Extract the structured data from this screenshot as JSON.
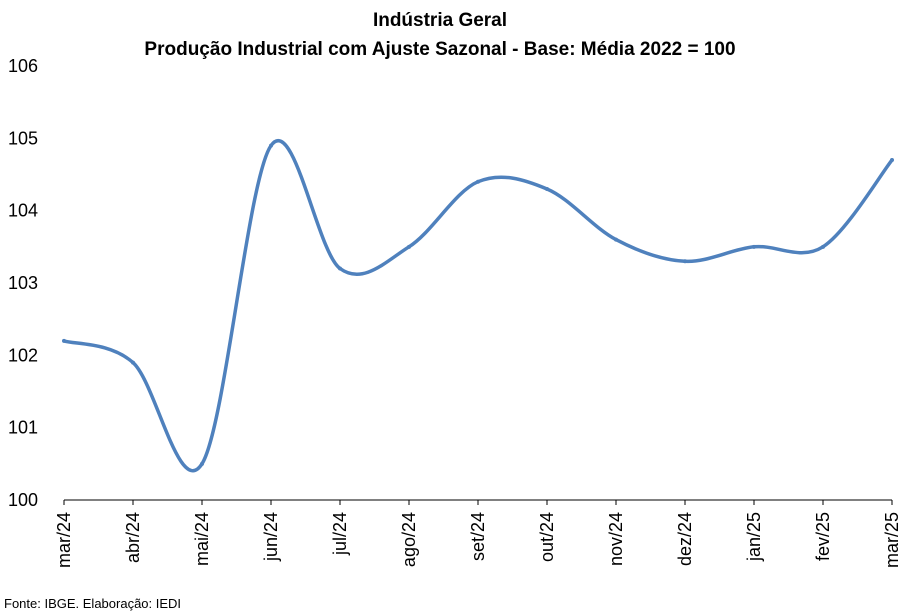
{
  "chart_data": {
    "type": "line",
    "title": "Indústria Geral",
    "subtitle": "Produção Industrial com Ajuste Sazonal - Base: Média 2022 = 100",
    "categories": [
      "mar/24",
      "abr/24",
      "mai/24",
      "jun/24",
      "jul/24",
      "ago/24",
      "set/24",
      "out/24",
      "nov/24",
      "dez/24",
      "jan/25",
      "fev/25",
      "mar/25"
    ],
    "series": [
      {
        "values": [
          102.2,
          101.9,
          100.5,
          104.9,
          103.2,
          103.5,
          104.4,
          104.3,
          103.6,
          103.3,
          103.5,
          103.5,
          104.7
        ]
      }
    ],
    "ylim": [
      100,
      106
    ],
    "yticks": [
      "100",
      "101",
      "102",
      "103",
      "104",
      "105",
      "106"
    ],
    "grid": false,
    "legend": "none",
    "line_color": "#4f81bd",
    "source": "Fonte: IBGE. Elaboração: IEDI"
  }
}
